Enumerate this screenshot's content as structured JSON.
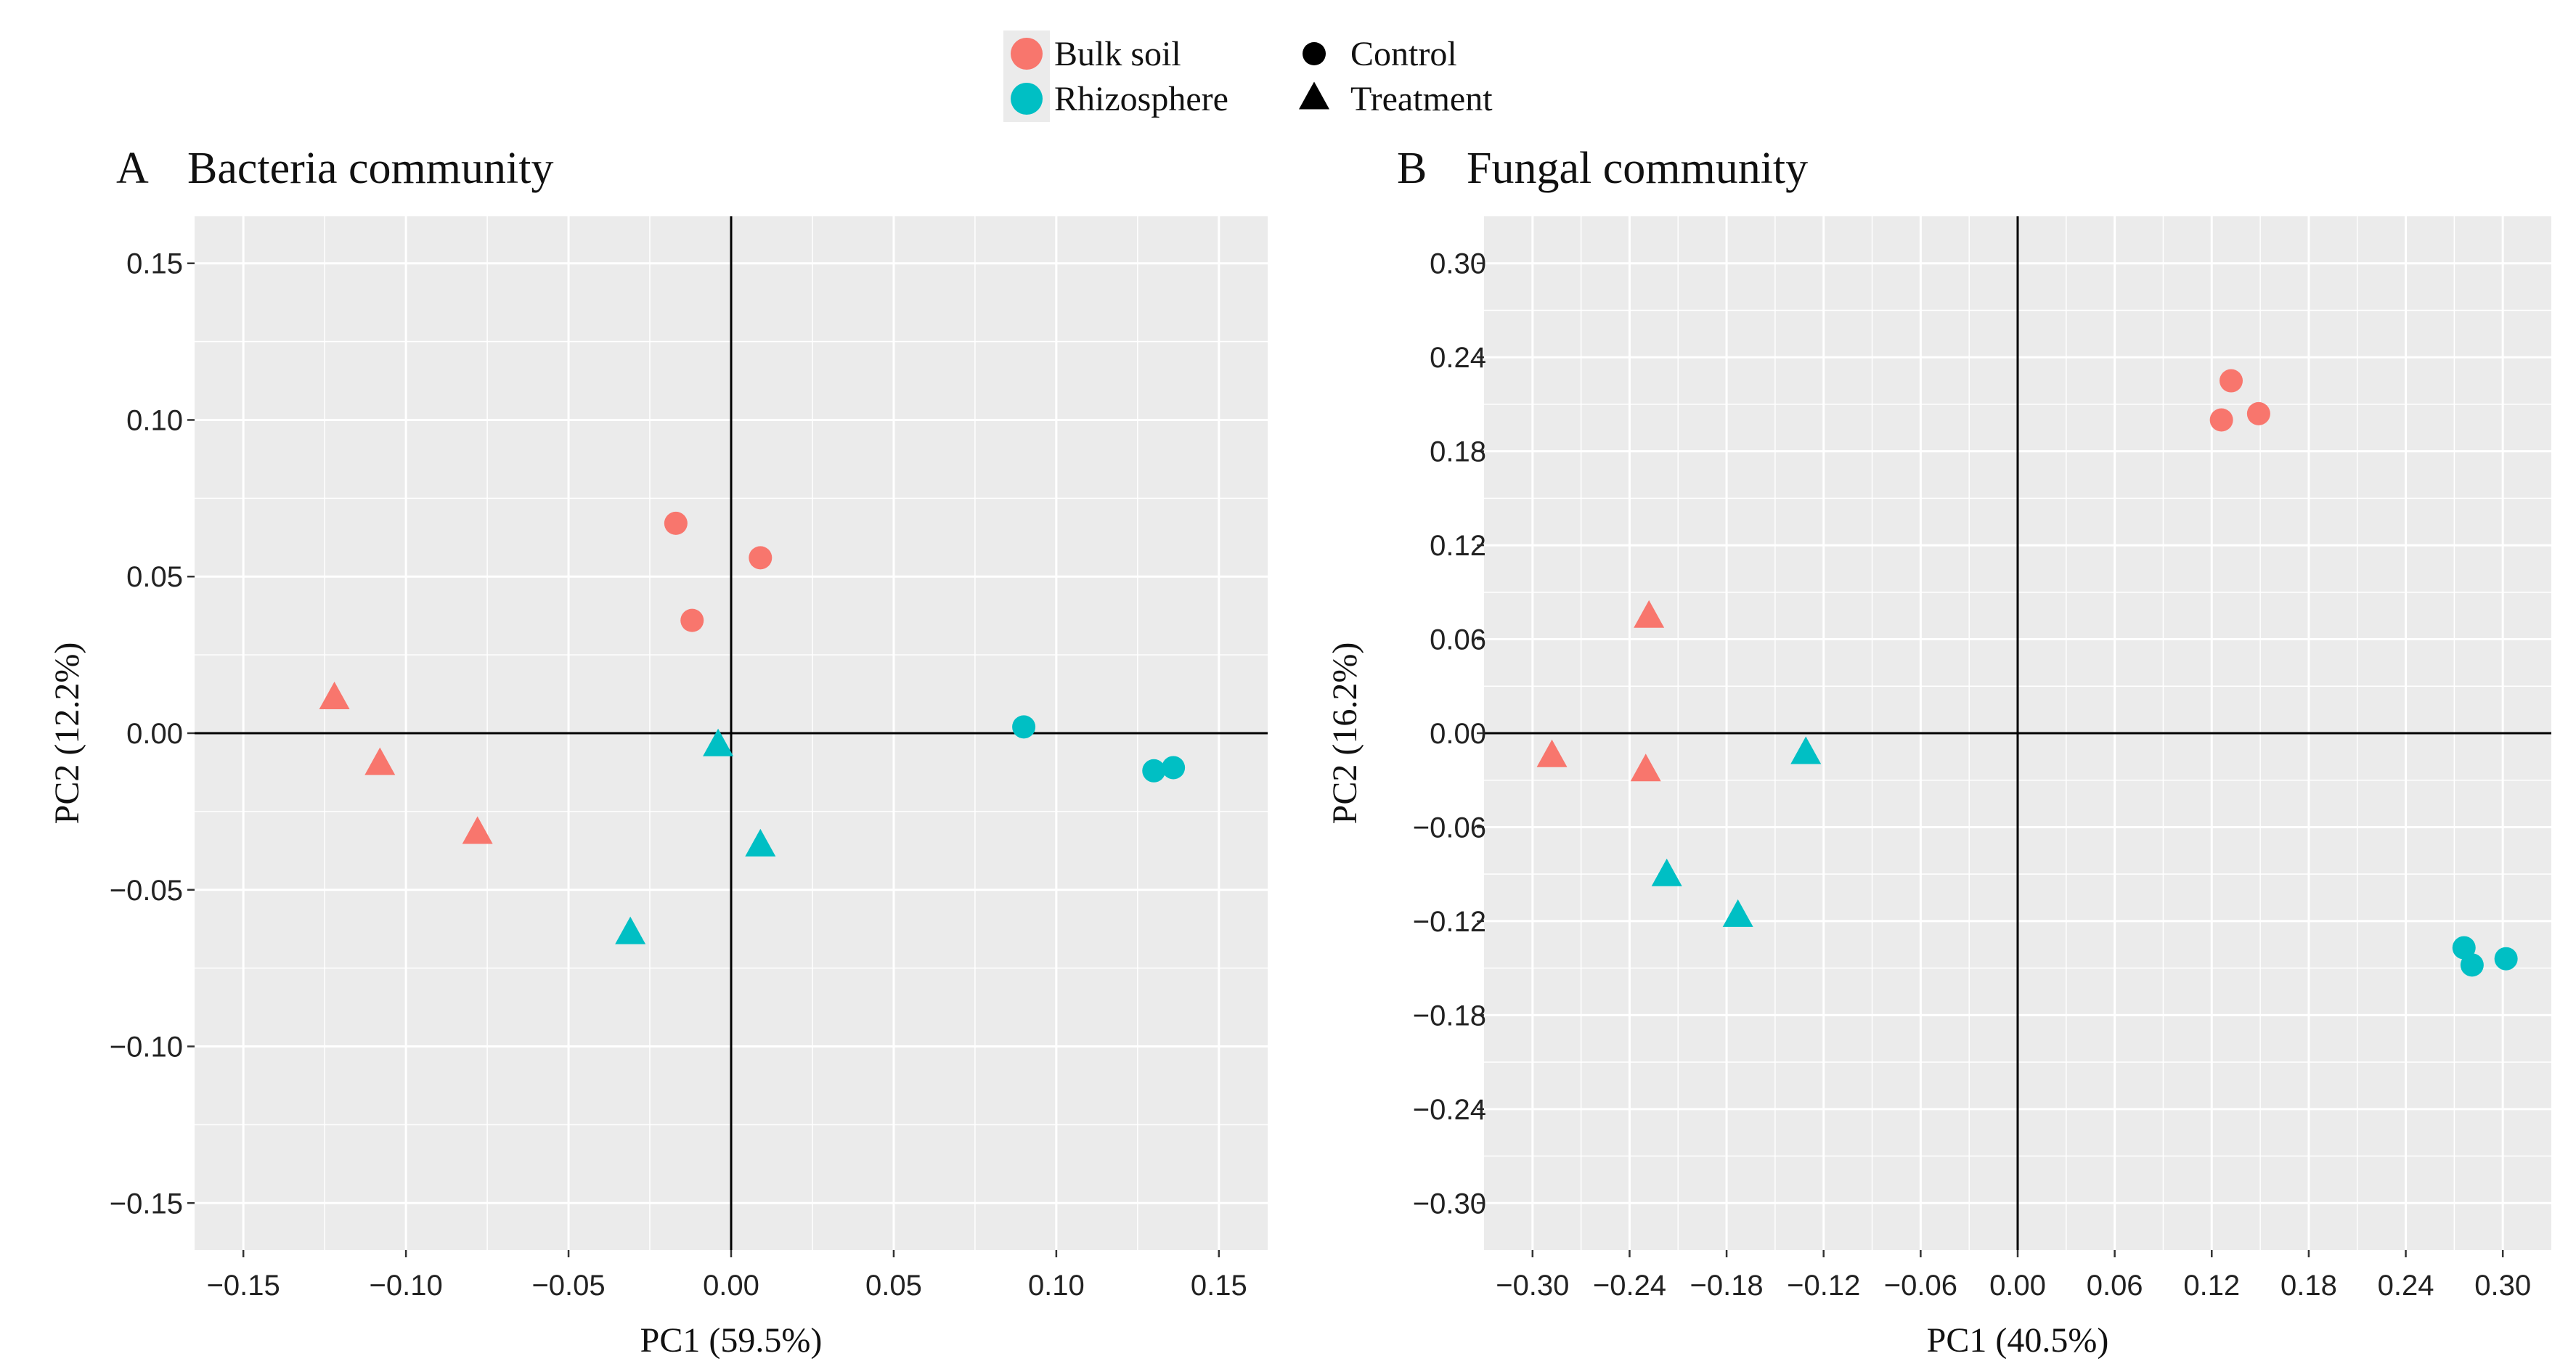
{
  "legend": {
    "group_items": [
      {
        "label": "Bulk soil",
        "color": "#F8766D"
      },
      {
        "label": "Rhizosphere",
        "color": "#00BFC4"
      }
    ],
    "shape_items": [
      {
        "label": "Control",
        "shape": "circle"
      },
      {
        "label": "Treatment",
        "shape": "triangle"
      }
    ]
  },
  "chart_data": [
    {
      "type": "scatter",
      "panel_letter": "A",
      "title": "Bacteria community",
      "xlabel": "PC1 (59.5%)",
      "ylabel": "PC2 (12.2%)",
      "xlim": [
        -0.165,
        0.165
      ],
      "ylim": [
        -0.165,
        0.165
      ],
      "xticks": [
        -0.15,
        -0.1,
        -0.05,
        0.0,
        0.05,
        0.1,
        0.15
      ],
      "xtick_labels": [
        "−0.15",
        "−0.10",
        "−0.05",
        "0.00",
        "0.05",
        "0.10",
        "0.15"
      ],
      "yticks": [
        -0.15,
        -0.1,
        -0.05,
        0.0,
        0.05,
        0.1,
        0.15
      ],
      "ytick_labels": [
        "−0.15",
        "−0.10",
        "−0.05",
        "0.00",
        "0.05",
        "0.10",
        "0.15"
      ],
      "grid": true,
      "series": [
        {
          "name": "Bulk soil Control",
          "group": "Bulk soil",
          "shape": "circle",
          "points": [
            [
              -0.017,
              0.067
            ],
            [
              -0.012,
              0.036
            ],
            [
              0.009,
              0.056
            ]
          ]
        },
        {
          "name": "Bulk soil Treatment",
          "group": "Bulk soil",
          "shape": "triangle",
          "points": [
            [
              -0.122,
              0.011
            ],
            [
              -0.108,
              -0.01
            ],
            [
              -0.078,
              -0.032
            ]
          ]
        },
        {
          "name": "Rhizosphere Control",
          "group": "Rhizosphere",
          "shape": "circle",
          "points": [
            [
              0.09,
              0.002
            ],
            [
              0.13,
              -0.012
            ],
            [
              0.136,
              -0.011
            ]
          ]
        },
        {
          "name": "Rhizosphere Treatment",
          "group": "Rhizosphere",
          "shape": "triangle",
          "points": [
            [
              -0.004,
              -0.004
            ],
            [
              0.009,
              -0.036
            ],
            [
              -0.031,
              -0.064
            ]
          ]
        }
      ]
    },
    {
      "type": "scatter",
      "panel_letter": "B",
      "title": "Fungal community",
      "xlabel": "PC1 (40.5%)",
      "ylabel": "PC2 (16.2%)",
      "xlim": [
        -0.33,
        0.33
      ],
      "ylim": [
        -0.33,
        0.33
      ],
      "xticks": [
        -0.3,
        -0.24,
        -0.18,
        -0.12,
        -0.06,
        0.0,
        0.06,
        0.12,
        0.18,
        0.24,
        0.3
      ],
      "xtick_labels": [
        "−0.30",
        "−0.24",
        "−0.18",
        "−0.12",
        "−0.06",
        "0.00",
        "0.06",
        "0.12",
        "0.18",
        "0.24",
        "0.30"
      ],
      "yticks": [
        -0.3,
        -0.24,
        -0.18,
        -0.12,
        -0.06,
        0.0,
        0.06,
        0.12,
        0.18,
        0.24,
        0.3
      ],
      "ytick_labels": [
        "−0.30",
        "−0.24",
        "−0.18",
        "−0.12",
        "−0.06",
        "0.00",
        "0.06",
        "0.12",
        "0.18",
        "0.24",
        "0.30"
      ],
      "grid": true,
      "series": [
        {
          "name": "Bulk soil Control",
          "group": "Bulk soil",
          "shape": "circle",
          "points": [
            [
              0.132,
              0.225
            ],
            [
              0.126,
              0.2
            ],
            [
              0.149,
              0.204
            ]
          ]
        },
        {
          "name": "Bulk soil Treatment",
          "group": "Bulk soil",
          "shape": "triangle",
          "points": [
            [
              -0.228,
              0.074
            ],
            [
              -0.288,
              -0.015
            ],
            [
              -0.23,
              -0.024
            ]
          ]
        },
        {
          "name": "Rhizosphere Control",
          "group": "Rhizosphere",
          "shape": "circle",
          "points": [
            [
              0.276,
              -0.137
            ],
            [
              0.281,
              -0.148
            ],
            [
              0.302,
              -0.144
            ]
          ]
        },
        {
          "name": "Rhizosphere Treatment",
          "group": "Rhizosphere",
          "shape": "triangle",
          "points": [
            [
              -0.131,
              -0.013
            ],
            [
              -0.217,
              -0.091
            ],
            [
              -0.173,
              -0.117
            ]
          ]
        }
      ]
    }
  ]
}
